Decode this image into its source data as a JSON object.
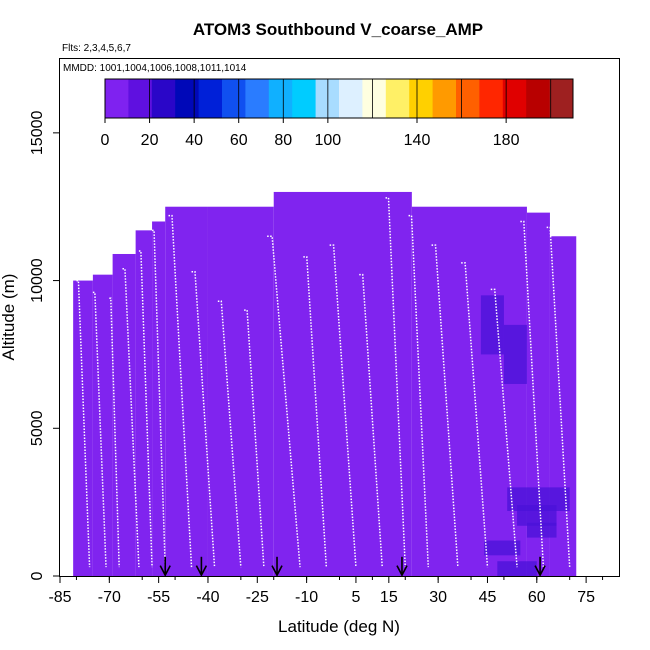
{
  "chart_data": {
    "type": "heatmap",
    "title": "ATOM3 Southbound V_coarse_AMP",
    "flights_label": "Flts: 2,3,4,5,6,7",
    "mmdd_label": "MMDD: 1001,1004,1006,1008,1011,1014",
    "xlabel": "Latitude (deg N)",
    "ylabel": "Altitude (m)",
    "xlim": [
      -85,
      85
    ],
    "ylim": [
      0,
      17500
    ],
    "x_ticks": [
      -85,
      -70,
      -55,
      -40,
      -25,
      -10,
      5,
      15,
      30,
      45,
      60,
      75
    ],
    "y_ticks": [
      0,
      5000,
      10000,
      15000
    ],
    "colorbar": {
      "min": 0,
      "max": 210,
      "tick_values": [
        0,
        20,
        40,
        60,
        80,
        100,
        140,
        180
      ],
      "colors": [
        "#7f22f0",
        "#5f10e0",
        "#2a06c8",
        "#0008b8",
        "#0020d8",
        "#1050f0",
        "#2a7cff",
        "#10b0ff",
        "#00ccff",
        "#a8dcff",
        "#ddf0ff",
        "#ffffe0",
        "#fff066",
        "#ffd000",
        "#ff9a00",
        "#ff6000",
        "#ff2600",
        "#e00000",
        "#b80000",
        "#9e2020"
      ]
    },
    "fill_color": "#8024ef",
    "dark_color": "#4a12d8",
    "flight_track_color": "#ffffff",
    "coverage_columns": [
      {
        "lat0": -81,
        "lat1": -75,
        "alt_top": 10000
      },
      {
        "lat0": -75,
        "lat1": -69,
        "alt_top": 10200
      },
      {
        "lat0": -69,
        "lat1": -62,
        "alt_top": 10900
      },
      {
        "lat0": -62,
        "lat1": -57,
        "alt_top": 11700
      },
      {
        "lat0": -57,
        "lat1": -53,
        "alt_top": 12000
      },
      {
        "lat0": -53,
        "lat1": -40,
        "alt_top": 12500
      },
      {
        "lat0": -40,
        "lat1": -20,
        "alt_top": 12500
      },
      {
        "lat0": -20,
        "lat1": 22,
        "alt_top": 13000
      },
      {
        "lat0": 22,
        "lat1": 57,
        "alt_top": 12500
      },
      {
        "lat0": 57,
        "lat1": 64,
        "alt_top": 12300
      },
      {
        "lat0": 64,
        "lat1": 72,
        "alt_top": 11500
      }
    ],
    "enhanced_cells": [
      {
        "lat0": 43,
        "lat1": 50,
        "alt0": 7500,
        "alt1": 9500
      },
      {
        "lat0": 50,
        "lat1": 57,
        "alt0": 6500,
        "alt1": 8500
      },
      {
        "lat0": 51,
        "lat1": 70,
        "alt0": 2200,
        "alt1": 3000
      },
      {
        "lat0": 54,
        "lat1": 66,
        "alt0": 1700,
        "alt1": 2400
      },
      {
        "lat0": 57,
        "lat1": 66,
        "alt0": 1300,
        "alt1": 1800
      },
      {
        "lat0": 44,
        "lat1": 55,
        "alt0": 700,
        "alt1": 1200
      },
      {
        "lat0": 48,
        "lat1": 60,
        "alt0": 0,
        "alt1": 500
      }
    ],
    "profile_segments": [
      {
        "lat0": -80,
        "lat1": -76,
        "alt_top": 10000
      },
      {
        "lat0": -75,
        "lat1": -71,
        "alt_top": 9600
      },
      {
        "lat0": -70,
        "lat1": -67,
        "alt_top": 9400
      },
      {
        "lat0": -66,
        "lat1": -61,
        "alt_top": 10400
      },
      {
        "lat0": -61,
        "lat1": -57,
        "alt_top": 11000
      },
      {
        "lat0": -57,
        "lat1": -53,
        "alt_top": 11700
      },
      {
        "lat0": -52,
        "lat1": -45,
        "alt_top": 12200
      },
      {
        "lat0": -45,
        "lat1": -38,
        "alt_top": 10300
      },
      {
        "lat0": -37,
        "lat1": -30,
        "alt_top": 9300
      },
      {
        "lat0": -29,
        "lat1": -23,
        "alt_top": 9000
      },
      {
        "lat0": -22,
        "lat1": -12,
        "alt_top": 11500
      },
      {
        "lat0": -11,
        "lat1": -4,
        "alt_top": 10800
      },
      {
        "lat0": -3,
        "lat1": 5,
        "alt_top": 11200
      },
      {
        "lat0": 6,
        "lat1": 13,
        "alt_top": 10200
      },
      {
        "lat0": 14,
        "lat1": 20,
        "alt_top": 12800
      },
      {
        "lat0": 21,
        "lat1": 27,
        "alt_top": 12200
      },
      {
        "lat0": 28,
        "lat1": 36,
        "alt_top": 11200
      },
      {
        "lat0": 37,
        "lat1": 45,
        "alt_top": 10600
      },
      {
        "lat0": 46,
        "lat1": 54,
        "alt_top": 9700
      },
      {
        "lat0": 55,
        "lat1": 62,
        "alt_top": 12000
      },
      {
        "lat0": 63,
        "lat1": 70,
        "alt_top": 11800
      }
    ],
    "arrows_lat": [
      -53,
      -42,
      -19,
      19,
      61
    ]
  }
}
